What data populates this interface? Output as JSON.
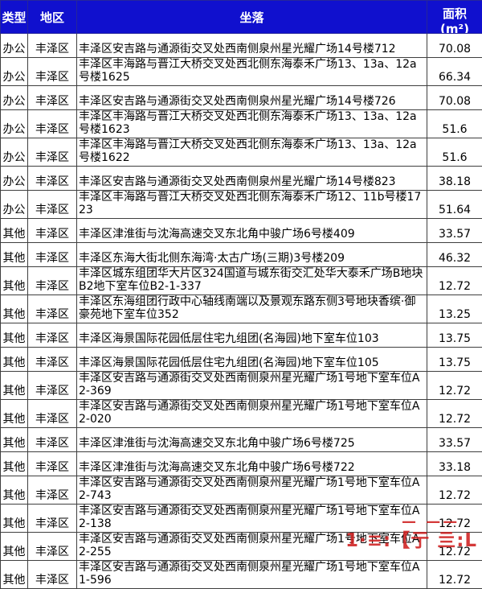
{
  "table": {
    "headers": {
      "type": "类型",
      "district": "地区",
      "location": "坐落",
      "area_line1": "面积",
      "area_line2": "(m²)"
    },
    "rows": [
      {
        "type": "办公",
        "district": "丰泽区",
        "location": "丰泽区安吉路与通源街交叉处西南侧泉州星光耀广场14号楼712",
        "area": "70.08",
        "lines": 1
      },
      {
        "type": "办公",
        "district": "丰泽区",
        "location": "丰泽区丰海路与晋江大桥交叉处西北侧东海泰禾广场13、13a、12a号楼1625",
        "area": "66.34",
        "lines": 2
      },
      {
        "type": "办公",
        "district": "丰泽区",
        "location": "丰泽区安吉路与通源街交叉处西南侧泉州星光耀广场14号楼726",
        "area": "70.08",
        "lines": 1
      },
      {
        "type": "办公",
        "district": "丰泽区",
        "location": "丰泽区丰海路与晋江大桥交叉处西北侧东海泰禾广场13、13a、12a号楼1623",
        "area": "51.6",
        "lines": 2
      },
      {
        "type": "办公",
        "district": "丰泽区",
        "location": "丰泽区丰海路与晋江大桥交叉处西北侧东海泰禾广场13、13a、12a号楼1622",
        "area": "51.6",
        "lines": 2
      },
      {
        "type": "办公",
        "district": "丰泽区",
        "location": "丰泽区安吉路与通源街交叉处西南侧泉州星光耀广场14号楼823",
        "area": "38.18",
        "lines": 1
      },
      {
        "type": "办公",
        "district": "丰泽区",
        "location": "丰泽区丰海路与晋江大桥交叉处西北侧东海泰禾广场12、11b号楼1723",
        "area": "51.64",
        "lines": 2
      },
      {
        "type": "其他",
        "district": "丰泽区",
        "location": "丰泽区津淮街与沈海高速交叉东北角中骏广场6号楼409",
        "area": "33.57",
        "lines": 1
      },
      {
        "type": "其他",
        "district": "丰泽区",
        "location": "丰泽区东海大街北侧东海湾·太古广场(三期)3号楼209",
        "area": "46.32",
        "lines": 1
      },
      {
        "type": "其他",
        "district": "丰泽区",
        "location": "丰泽区城东组团华大片区324国道与城东街交汇处华大泰禾广场B地块B2地下室车位B2-1-337",
        "area": "12.72",
        "lines": 2
      },
      {
        "type": "其他",
        "district": "丰泽区",
        "location": "丰泽区东海组团行政中心轴线南端以及景观东路东侧3号地块香缤·御豪苑地下室车位352",
        "area": "13.25",
        "lines": 2
      },
      {
        "type": "其他",
        "district": "丰泽区",
        "location": "丰泽区海景国际花园低层住宅九组团(名海园)地下室车位103",
        "area": "13.75",
        "lines": 1
      },
      {
        "type": "其他",
        "district": "丰泽区",
        "location": "丰泽区海景国际花园低层住宅九组团(名海园)地下室车位105",
        "area": "13.75",
        "lines": 1
      },
      {
        "type": "其他",
        "district": "丰泽区",
        "location": "丰泽区安吉路与通源街交叉处西南侧泉州星光耀广场1号地下室车位A2-369",
        "area": "12.72",
        "lines": 2
      },
      {
        "type": "其他",
        "district": "丰泽区",
        "location": "丰泽区安吉路与通源街交叉处西南侧泉州星光耀广场1号地下室车位A2-020",
        "area": "12.72",
        "lines": 2
      },
      {
        "type": "其他",
        "district": "丰泽区",
        "location": "丰泽区津淮街与沈海高速交叉东北角中骏广场6号楼725",
        "area": "33.57",
        "lines": 1
      },
      {
        "type": "其他",
        "district": "丰泽区",
        "location": "丰泽区津淮街与沈海高速交叉东北角中骏广场6号楼722",
        "area": "33.18",
        "lines": 1
      },
      {
        "type": "其他",
        "district": "丰泽区",
        "location": "丰泽区安吉路与通源街交叉处西南侧泉州星光耀广场1号地下室车位A2-743",
        "area": "12.72",
        "lines": 2
      },
      {
        "type": "其他",
        "district": "丰泽区",
        "location": "丰泽区安吉路与通源街交叉处西南侧泉州星光耀广场1号地下室车位A2-138",
        "area": "12.72",
        "lines": 2
      },
      {
        "type": "其他",
        "district": "丰泽区",
        "location": "丰泽区安吉路与通源街交叉处西南侧泉州星光耀广场1号地下室车位A2-255",
        "area": "12.72",
        "lines": 2
      },
      {
        "type": "其他",
        "district": "丰泽区",
        "location": "丰泽区安吉路与通源街交叉处西南侧泉州星光耀广场1号地下室车位A1-596",
        "area": "12.72",
        "lines": 2
      }
    ]
  },
  "watermark": {
    "main_fragments": "1·≡:【亍 亖:L",
    "dash_fragments": "— ——",
    "color": "#cf1f1f"
  },
  "colors": {
    "header_bg": "#1010ce",
    "header_text": "#ffffff",
    "border": "#3f3f3f",
    "body_text": "#000000"
  }
}
